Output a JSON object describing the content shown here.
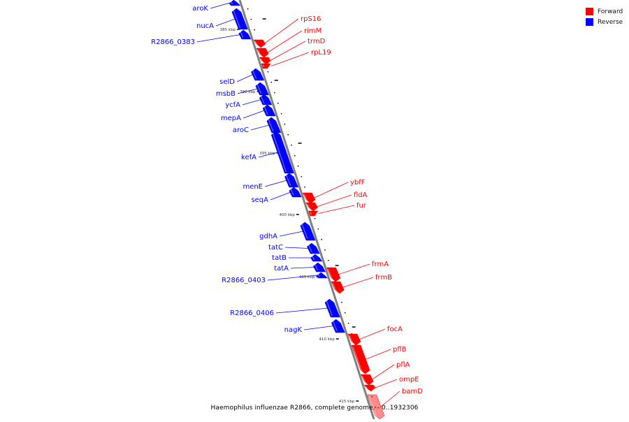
{
  "caption": "Haemophilus influenzae R2866, complete genome. - 0..1932306",
  "legend": [
    {
      "label": "Forward",
      "color": "#ff0000"
    },
    {
      "label": "Reverse",
      "color": "#0000ff"
    }
  ],
  "colors": {
    "forward": "#ff0000",
    "reverse": "#0000ff",
    "backbone": "#808080",
    "ticks": "#000000"
  },
  "kbp_ticks": [
    "385 kbp",
    "390 kbp",
    "395 kbp",
    "400 kbp",
    "405 kbp",
    "410 kbp",
    "415 kbp"
  ],
  "genes": {
    "reverse": [
      "aroK",
      "nucA",
      "R2866_0383",
      "selD",
      "msbB",
      "ycfA",
      "mepA",
      "aroC",
      "kefA",
      "menE",
      "seqA",
      "gdhA",
      "tatC",
      "tatB",
      "tatA",
      "R2866_0403",
      "R2866_0406",
      "nagK"
    ],
    "forward": [
      "rpS16",
      "rimM",
      "trmD",
      "rpL19",
      "ybfF",
      "fldA",
      "fur",
      "frmA",
      "frmB",
      "focA",
      "pflB",
      "pflA",
      "ompE",
      "bamD"
    ]
  }
}
